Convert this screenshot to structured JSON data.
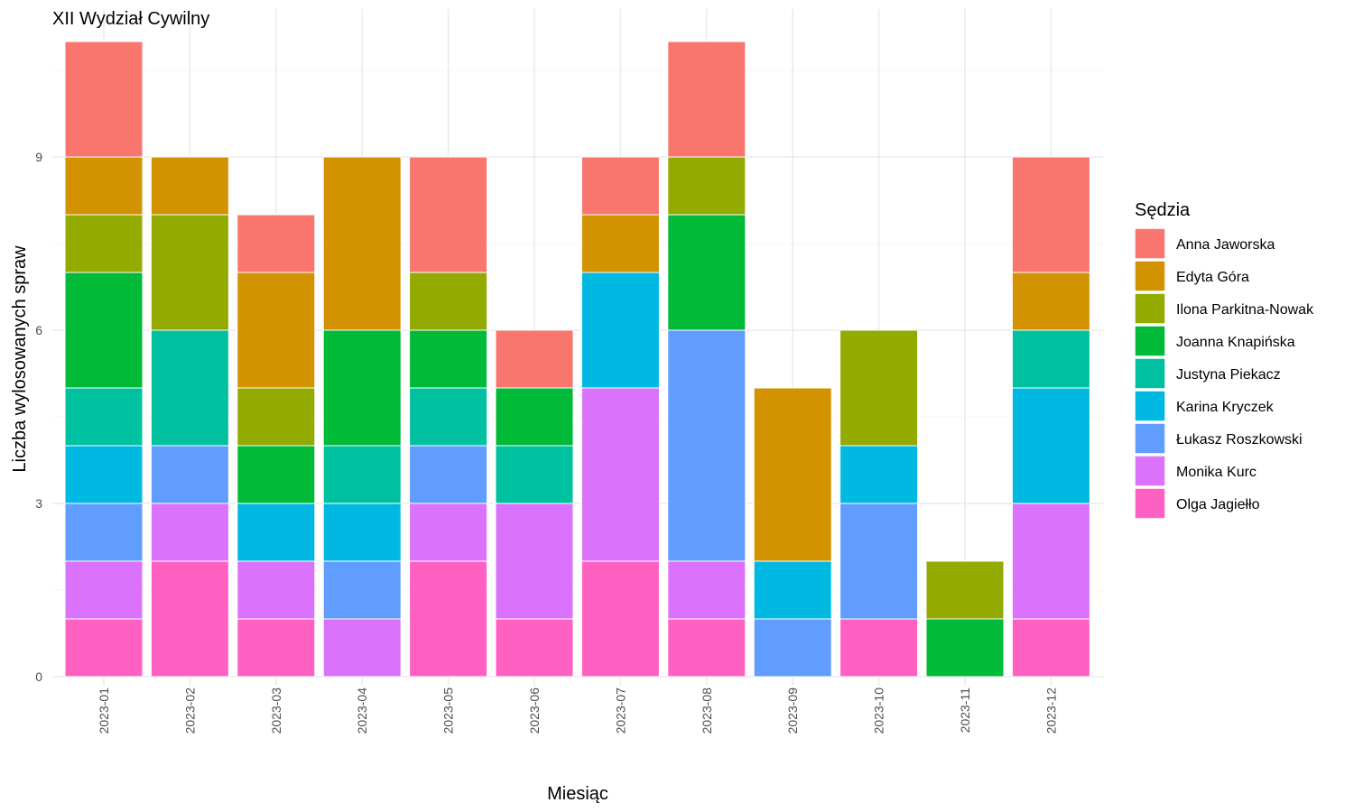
{
  "chart_data": {
    "type": "bar",
    "stacked": true,
    "title": "XII Wydział Cywilny",
    "xlabel": "Miesiąc",
    "ylabel": "Liczba wylosowanych spraw",
    "ylim": [
      0,
      11
    ],
    "yticks": [
      0,
      3,
      6,
      9
    ],
    "grid": true,
    "legend_title": "Sędzia",
    "legend_position": "right",
    "categories": [
      "2023-01",
      "2023-02",
      "2023-03",
      "2023-04",
      "2023-05",
      "2023-06",
      "2023-07",
      "2023-08",
      "2023-09",
      "2023-10",
      "2023-11",
      "2023-12"
    ],
    "series": [
      {
        "name": "Anna Jaworska",
        "color": "#F8766D",
        "values": [
          2,
          0,
          1,
          0,
          2,
          1,
          1,
          2,
          0,
          0,
          0,
          2
        ]
      },
      {
        "name": "Edyta Góra",
        "color": "#D39200",
        "values": [
          1,
          1,
          2,
          3,
          0,
          0,
          1,
          0,
          3,
          0,
          0,
          1
        ]
      },
      {
        "name": "Ilona Parkitna-Nowak",
        "color": "#93AA00",
        "values": [
          1,
          2,
          1,
          0,
          1,
          0,
          0,
          1,
          0,
          2,
          1,
          0
        ]
      },
      {
        "name": "Joanna Knapińska",
        "color": "#00BA38",
        "values": [
          2,
          0,
          1,
          2,
          1,
          1,
          0,
          2,
          0,
          0,
          1,
          0
        ]
      },
      {
        "name": "Justyna Piekacz",
        "color": "#00C19F",
        "values": [
          1,
          2,
          0,
          1,
          1,
          1,
          0,
          0,
          0,
          0,
          0,
          1
        ]
      },
      {
        "name": "Karina Kryczek",
        "color": "#00B9E3",
        "values": [
          1,
          0,
          1,
          1,
          0,
          0,
          2,
          0,
          1,
          1,
          0,
          2
        ]
      },
      {
        "name": "Łukasz Roszkowski",
        "color": "#619CFF",
        "values": [
          1,
          1,
          0,
          1,
          1,
          0,
          0,
          4,
          1,
          2,
          0,
          0
        ]
      },
      {
        "name": "Monika Kurc",
        "color": "#DB72FB",
        "values": [
          1,
          1,
          1,
          1,
          1,
          2,
          3,
          1,
          0,
          0,
          0,
          2
        ]
      },
      {
        "name": "Olga Jagiełło",
        "color": "#FF61C3",
        "values": [
          1,
          2,
          1,
          0,
          2,
          1,
          2,
          1,
          0,
          1,
          0,
          1
        ]
      }
    ]
  }
}
